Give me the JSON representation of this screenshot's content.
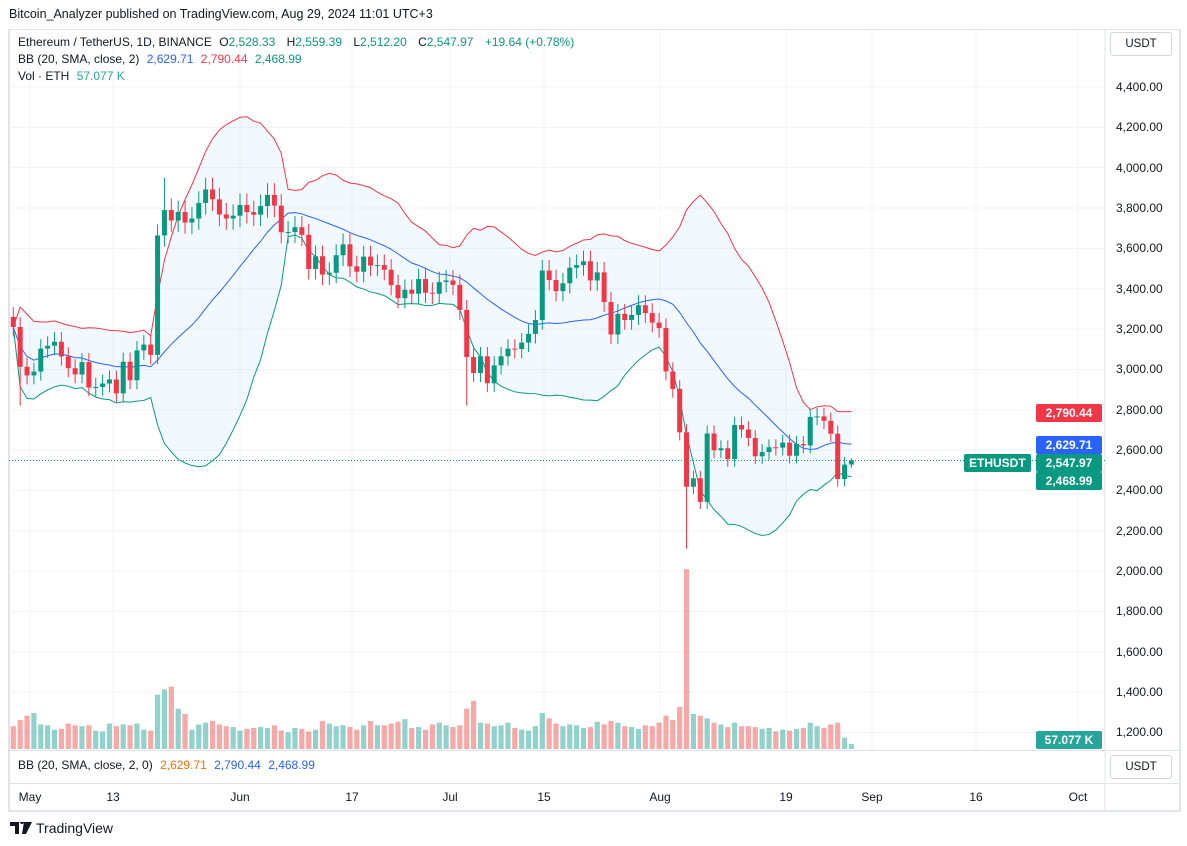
{
  "published": "Bitcoin_Analyzer published on TradingView.com, Aug 29, 2024 11:01 UTC+3",
  "legend": {
    "symbol": "Ethereum / TetherUS, 1D, BINANCE",
    "o_label": "O",
    "o": "2,528.33",
    "h_label": "H",
    "h": "2,559.39",
    "l_label": "L",
    "l": "2,512.20",
    "c_label": "C",
    "c": "2,547.97",
    "change": "+19.64 (+0.78%)",
    "bb_label": "BB (20, SMA, close, 2)",
    "bb_basis": "2,629.71",
    "bb_upper": "2,790.44",
    "bb_lower": "2,468.99",
    "vol_label": "Vol · ETH",
    "vol": "57.077 K"
  },
  "lower_pane": {
    "label": "BB (20, SMA, close, 2, 0)",
    "v1": "2,629.71",
    "v2": "2,790.44",
    "v3": "2,468.99",
    "currency": "USDT"
  },
  "price_axis": {
    "currency": "USDT",
    "labels": [
      "4,400.00",
      "4,200.00",
      "4,000.00",
      "3,800.00",
      "3,600.00",
      "3,400.00",
      "3,200.00",
      "3,000.00",
      "2,800.00",
      "2,600.00",
      "2,400.00",
      "2,200.00",
      "2,000.00",
      "1,800.00",
      "1,600.00",
      "1,400.00",
      "1,200.00"
    ],
    "tags": {
      "upper": "2,790.44",
      "basis": "2,629.71",
      "last": "2,547.97",
      "lower": "2,468.99",
      "volume": "57.077 K",
      "symbol": "ETHUSDT"
    }
  },
  "time_axis": [
    "May",
    "13",
    "Jun",
    "17",
    "Jul",
    "15",
    "Aug",
    "19",
    "Sep",
    "16",
    "Oct"
  ],
  "footer": "TradingView",
  "colors": {
    "up": "#089981",
    "down": "#f23645",
    "basis": "#2962ff",
    "upper": "#f23645",
    "lower": "#089981"
  },
  "chart_data": {
    "type": "candlestick",
    "title": "Ethereum / TetherUS, 1D, BINANCE",
    "start_date": "2024-04-29",
    "first_open": 3260,
    "close": [
      3210,
      3013,
      2970,
      2989,
      3103,
      3117,
      3137,
      3064,
      3006,
      2975,
      3036,
      2910,
      2913,
      2930,
      2950,
      2881,
      3038,
      2946,
      3094,
      3123,
      3072,
      3664,
      3790,
      3738,
      3780,
      3728,
      3748,
      3825,
      3892,
      3843,
      3768,
      3748,
      3762,
      3815,
      3780,
      3767,
      3810,
      3865,
      3812,
      3680,
      3681,
      3705,
      3667,
      3498,
      3561,
      3470,
      3479,
      3566,
      3620,
      3511,
      3484,
      3559,
      3515,
      3517,
      3494,
      3418,
      3353,
      3395,
      3375,
      3448,
      3380,
      3375,
      3433,
      3441,
      3419,
      3295,
      3061,
      2982,
      3065,
      2931,
      3020,
      3065,
      3103,
      3101,
      3133,
      3176,
      3245,
      3490,
      3443,
      3388,
      3427,
      3504,
      3517,
      3536,
      3441,
      3481,
      3334,
      3173,
      3275,
      3245,
      3270,
      3318,
      3279,
      3232,
      3205,
      2990,
      2903,
      2688,
      2418,
      2460,
      2343,
      2682,
      2599,
      2609,
      2555,
      2724,
      2702,
      2660,
      2569,
      2590,
      2614,
      2612,
      2637,
      2572,
      2630,
      2623,
      2764,
      2767,
      2745,
      2681,
      2456,
      2528,
      2547.97
    ],
    "last_ohlc": {
      "open": 2528.33,
      "high": 2559.39,
      "low": 2512.2,
      "close": 2547.97
    },
    "wick_overrides": [
      {
        "index": 98,
        "low": 2111
      },
      {
        "index": 22,
        "high": 3950
      },
      {
        "index": 66,
        "low": 2820
      },
      {
        "index": 1,
        "low": 2820
      }
    ],
    "volume_k": [
      260,
      330,
      380,
      410,
      280,
      270,
      220,
      230,
      290,
      270,
      260,
      270,
      210,
      200,
      290,
      260,
      280,
      270,
      290,
      220,
      210,
      620,
      680,
      710,
      460,
      400,
      220,
      280,
      300,
      320,
      280,
      260,
      250,
      210,
      230,
      240,
      250,
      240,
      270,
      210,
      190,
      240,
      230,
      200,
      220,
      320,
      290,
      260,
      270,
      250,
      220,
      270,
      320,
      270,
      270,
      290,
      310,
      340,
      240,
      250,
      220,
      280,
      300,
      270,
      250,
      270,
      460,
      550,
      300,
      290,
      260,
      270,
      300,
      240,
      220,
      210,
      260,
      410,
      350,
      290,
      260,
      280,
      270,
      240,
      250,
      310,
      280,
      320,
      300,
      260,
      250,
      230,
      270,
      260,
      300,
      380,
      330,
      480,
      2050,
      400,
      380,
      350,
      300,
      280,
      250,
      300,
      260,
      260,
      250,
      230,
      240,
      200,
      220,
      210,
      230,
      240,
      300,
      260,
      240,
      280,
      300,
      130,
      57.077
    ],
    "bollinger": {
      "period": 20,
      "mult": 2,
      "basis_last": 2629.71,
      "upper_last": 2790.44,
      "lower_last": 2468.99
    },
    "ylim": [
      1100,
      4500
    ],
    "xlabel": "",
    "ylabel": "USDT",
    "grid": true
  }
}
